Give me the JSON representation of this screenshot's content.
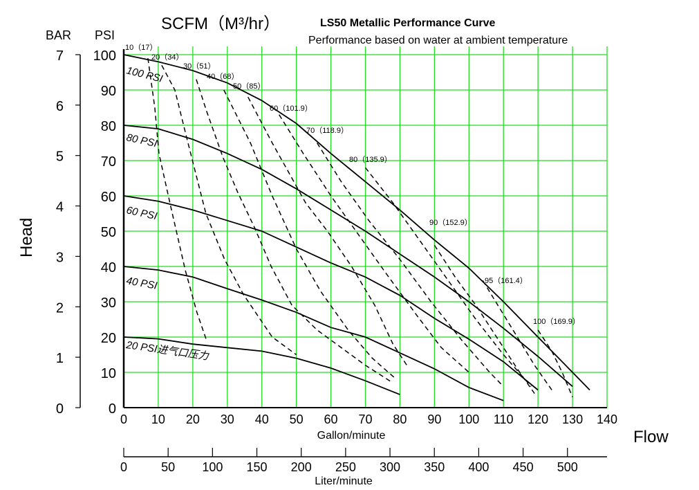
{
  "chart_data": {
    "type": "line",
    "title": "LS50 Metallic Performance Curve",
    "subtitle": "Performance based on water at ambient temperature",
    "top_label": "SCFM（M³/hr）",
    "xlabel": "Gallon/minute",
    "x2label": "Liter/minute",
    "flow_label": "Flow",
    "ylabel": "Head",
    "y_units_left": "BAR",
    "y_units_right": "PSI",
    "xlim": [
      0,
      140
    ],
    "ylim": [
      0,
      100
    ],
    "grid": true,
    "grid_color": "#22dd22",
    "x_ticks": [
      "0",
      "10",
      "20",
      "30",
      "40",
      "50",
      "60",
      "70",
      "80",
      "90",
      "100",
      "110",
      "120",
      "130",
      "140"
    ],
    "x2_ticks": [
      "0",
      "50",
      "100",
      "150",
      "200",
      "250",
      "300",
      "350",
      "400",
      "450",
      "500"
    ],
    "psi_ticks": [
      "0",
      "10",
      "20",
      "30",
      "40",
      "50",
      "60",
      "70",
      "80",
      "90",
      "100"
    ],
    "bar_ticks": [
      "0",
      "1",
      "2",
      "3",
      "4",
      "5",
      "6",
      "7"
    ],
    "series": [
      {
        "name": "100 PSI",
        "values": [
          [
            0,
            100
          ],
          [
            10,
            98
          ],
          [
            20,
            95.5
          ],
          [
            30,
            92
          ],
          [
            40,
            87
          ],
          [
            50,
            80.5
          ],
          [
            60,
            72
          ],
          [
            70,
            64
          ],
          [
            80,
            56
          ],
          [
            90,
            47.5
          ],
          [
            100,
            39.5
          ],
          [
            110,
            30
          ],
          [
            120,
            20
          ],
          [
            130,
            10
          ],
          [
            135,
            5
          ]
        ]
      },
      {
        "name": "80 PSI",
        "values": [
          [
            0,
            80
          ],
          [
            10,
            79
          ],
          [
            20,
            76
          ],
          [
            30,
            72
          ],
          [
            40,
            67.5
          ],
          [
            50,
            62
          ],
          [
            60,
            56
          ],
          [
            70,
            50
          ],
          [
            80,
            43.5
          ],
          [
            90,
            37
          ],
          [
            100,
            30
          ],
          [
            110,
            22.5
          ],
          [
            120,
            14.5
          ],
          [
            130,
            6
          ]
        ]
      },
      {
        "name": "60 PSI",
        "values": [
          [
            0,
            60
          ],
          [
            10,
            58.5
          ],
          [
            20,
            56
          ],
          [
            30,
            53
          ],
          [
            40,
            50
          ],
          [
            50,
            45.5
          ],
          [
            60,
            41
          ],
          [
            70,
            37
          ],
          [
            80,
            31.8
          ],
          [
            90,
            25.3
          ],
          [
            100,
            19.4
          ],
          [
            110,
            13
          ],
          [
            120,
            5
          ]
        ]
      },
      {
        "name": "40 PSI",
        "values": [
          [
            0,
            40
          ],
          [
            10,
            39
          ],
          [
            20,
            37
          ],
          [
            30,
            33.7
          ],
          [
            40,
            30.5
          ],
          [
            50,
            27
          ],
          [
            60,
            22.7
          ],
          [
            70,
            20
          ],
          [
            80,
            15.5
          ],
          [
            90,
            11
          ],
          [
            100,
            5.7
          ],
          [
            110,
            2
          ]
        ]
      },
      {
        "name": "20 PSI进气口压力",
        "values": [
          [
            0,
            20
          ],
          [
            10,
            19.5
          ],
          [
            20,
            18
          ],
          [
            30,
            17
          ],
          [
            40,
            16
          ],
          [
            50,
            14
          ],
          [
            60,
            11.2
          ],
          [
            70,
            7.6
          ],
          [
            80,
            3.7
          ]
        ]
      }
    ],
    "air_consumption": [
      {
        "name": "10（17）",
        "values": [
          [
            7,
            99
          ],
          [
            9,
            85
          ],
          [
            10.2,
            72
          ],
          [
            13.6,
            57
          ],
          [
            17.8,
            39
          ],
          [
            21.2,
            27
          ],
          [
            24,
            19
          ]
        ]
      },
      {
        "name": "20（34）",
        "values": [
          [
            11,
            97
          ],
          [
            14.8,
            90
          ],
          [
            18.6,
            75
          ],
          [
            23.8,
            55
          ],
          [
            29.2,
            42
          ],
          [
            34.7,
            32
          ],
          [
            43,
            20
          ],
          [
            50,
            15
          ]
        ]
      },
      {
        "name": "30（51）",
        "values": [
          [
            21,
            93
          ],
          [
            24,
            84
          ],
          [
            28.7,
            71
          ],
          [
            33,
            61
          ],
          [
            37.9,
            51
          ],
          [
            42.7,
            40
          ],
          [
            48.7,
            29
          ],
          [
            56,
            22
          ],
          [
            70,
            12
          ],
          [
            78,
            7
          ]
        ]
      },
      {
        "name": "40（68）",
        "values": [
          [
            29,
            90
          ],
          [
            36.7,
            75
          ],
          [
            43,
            60
          ],
          [
            50,
            45
          ],
          [
            57,
            33
          ],
          [
            65,
            22
          ],
          [
            72,
            14
          ],
          [
            79,
            8
          ]
        ]
      },
      {
        "name": "50（85）",
        "values": [
          [
            36,
            88
          ],
          [
            43,
            75
          ],
          [
            47,
            68
          ],
          [
            52.7,
            58
          ],
          [
            59,
            50
          ],
          [
            66,
            40
          ],
          [
            72.7,
            29
          ],
          [
            78,
            18
          ],
          [
            82,
            12
          ]
        ]
      },
      {
        "name": "60（101.9）",
        "values": [
          [
            45,
            83
          ],
          [
            52,
            72
          ],
          [
            60,
            60
          ],
          [
            68,
            49
          ],
          [
            76,
            38
          ],
          [
            85,
            26
          ],
          [
            92,
            17
          ],
          [
            100,
            10
          ]
        ]
      },
      {
        "name": "70（118.9）",
        "values": [
          [
            56,
            75
          ],
          [
            63,
            64
          ],
          [
            71,
            53
          ],
          [
            80,
            42
          ],
          [
            89,
            30
          ],
          [
            98,
            19
          ],
          [
            106,
            10
          ],
          [
            110,
            6
          ]
        ]
      },
      {
        "name": "80（135.9）",
        "values": [
          [
            70,
            68
          ],
          [
            78,
            58
          ],
          [
            86,
            47
          ],
          [
            94,
            36
          ],
          [
            102,
            25
          ],
          [
            110,
            15
          ],
          [
            118,
            6
          ]
        ]
      },
      {
        "name": "90（152.9）",
        "values": [
          [
            90,
            46
          ],
          [
            96,
            37
          ],
          [
            102,
            29
          ],
          [
            108,
            20
          ],
          [
            114,
            11
          ],
          [
            119,
            4
          ]
        ]
      },
      {
        "name": "95（161.4）",
        "values": [
          [
            104,
            36
          ],
          [
            109,
            28
          ],
          [
            114,
            20
          ],
          [
            119,
            12
          ],
          [
            124,
            5
          ]
        ]
      },
      {
        "name": "100（169.9）",
        "values": [
          [
            120,
            22
          ],
          [
            124,
            16
          ],
          [
            127,
            10
          ],
          [
            130,
            3
          ]
        ]
      }
    ]
  }
}
